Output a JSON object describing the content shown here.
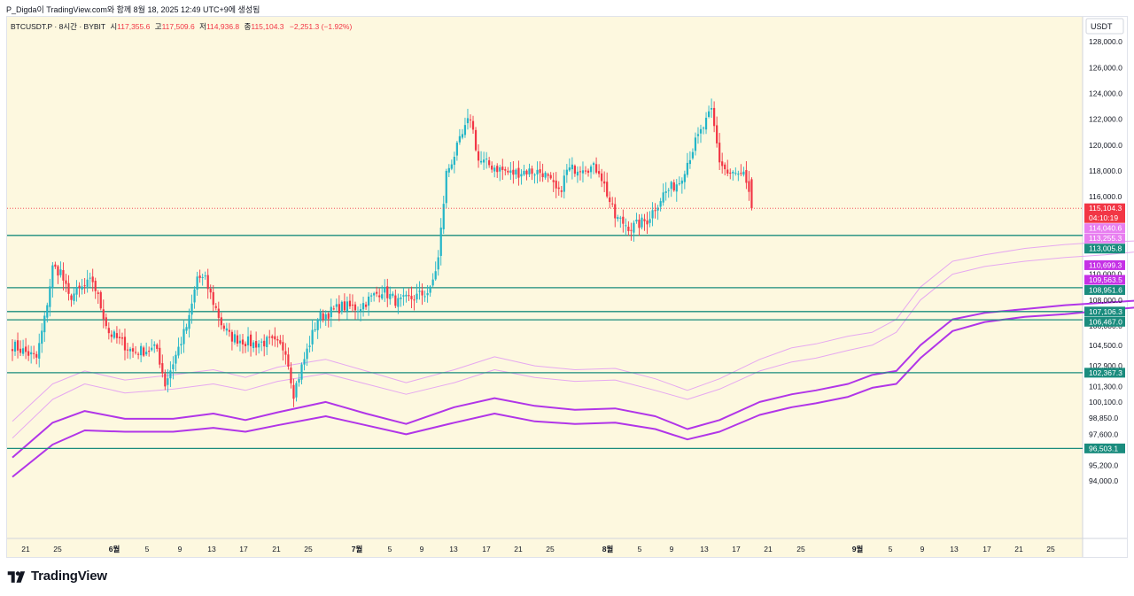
{
  "caption": "P_Digda이 TradingView.com와 함께 8월 18, 2025 12:49 UTC+9에 생성됨",
  "legend": {
    "symbol": "BTCUSDT.P · 8시간 · BYBIT",
    "open_label": "시",
    "open": "117,355.6",
    "high_label": "고",
    "high": "117,509.6",
    "low_label": "저",
    "low": "114,936.8",
    "close_label": "종",
    "close": "115,104.3",
    "change": "−2,251.3 (−1.92%)"
  },
  "brand": {
    "name": "TradingView"
  },
  "colors": {
    "background": "#fdf8df",
    "up": "#22b5c8",
    "down": "#f23645",
    "hline": "#1a8c7e",
    "band_inner": "#e6a8f0",
    "band_outer": "#b135e8",
    "price_line": "#f23645"
  },
  "chart_data": {
    "type": "candlestick",
    "symbol": "BTCUSDT.P",
    "exchange": "BYBIT",
    "interval": "8시간",
    "currency": "USDT",
    "y_axis": {
      "ylim": [
        93100,
        129400
      ],
      "ticks": [
        "128,000.0",
        "126,000.0",
        "124,000.0",
        "122,000.0",
        "120,000.0",
        "118,000.0",
        "116,000.0",
        "108,000.0",
        "104,500.0",
        "102,900.0",
        "101,300.0",
        "100,100.0",
        "98,850.0",
        "97,600.0",
        "95,200.0",
        "94,000.0"
      ],
      "partial_ticks": [
        "110,000.0",
        "106,000.0"
      ]
    },
    "x_axis": {
      "labels": [
        "21",
        "25",
        "6월",
        "5",
        "9",
        "13",
        "17",
        "21",
        "25",
        "7월",
        "5",
        "9",
        "13",
        "17",
        "21",
        "25",
        "8월",
        "5",
        "9",
        "13",
        "17",
        "21",
        "25",
        "9월",
        "5",
        "9",
        "13",
        "17",
        "21",
        "25"
      ]
    },
    "horizontal_levels": [
      113005.8,
      108951.6,
      107106.3,
      106467.0,
      102367.3,
      96503.1
    ],
    "price_badges": [
      {
        "text": "115,104.3",
        "sub": "04:10:19",
        "value": 115104.3,
        "color": "#f23645"
      },
      {
        "text": "114,040.6",
        "value": 114040.6,
        "color": "#e87ef0"
      },
      {
        "text": "113,255.3",
        "value": 113255.3,
        "color": "#e87ef0"
      },
      {
        "text": "113,005.8",
        "value": 113005.8,
        "color": "#1a8c7e"
      },
      {
        "text": "110,699.3",
        "value": 110699.3,
        "color": "#c531e6"
      },
      {
        "text": "109,563.5",
        "value": 109563.5,
        "color": "#c531e6"
      },
      {
        "text": "108,951.6",
        "value": 108951.6,
        "color": "#1a8c7e"
      },
      {
        "text": "107,106.3",
        "value": 107106.3,
        "color": "#1a8c7e"
      },
      {
        "text": "106,467.0",
        "value": 106467.0,
        "color": "#1a8c7e"
      },
      {
        "text": "102,367.3",
        "value": 102367.3,
        "color": "#1a8c7e"
      },
      {
        "text": "96,503.1",
        "value": 96503.1,
        "color": "#1a8c7e"
      }
    ],
    "close_path": [
      [
        "5/18",
        104500
      ],
      [
        "5/21",
        103500
      ],
      [
        "5/22",
        106500
      ],
      [
        "5/23",
        110500
      ],
      [
        "5/24",
        110200
      ],
      [
        "5/25",
        108200
      ],
      [
        "5/28",
        109500
      ],
      [
        "5/30",
        105500
      ],
      [
        "6/2",
        104000
      ],
      [
        "6/5",
        104200
      ],
      [
        "6/6",
        101500
      ],
      [
        "6/9",
        106500
      ],
      [
        "6/10",
        109800
      ],
      [
        "6/11",
        109500
      ],
      [
        "6/13",
        106200
      ],
      [
        "6/14",
        105200
      ],
      [
        "6/17",
        104600
      ],
      [
        "6/19",
        104800
      ],
      [
        "6/21",
        104200
      ],
      [
        "6/22",
        100800
      ],
      [
        "6/23",
        102800
      ],
      [
        "6/25",
        106600
      ],
      [
        "6/28",
        107500
      ],
      [
        "6/30",
        107400
      ],
      [
        "7/3",
        108800
      ],
      [
        "7/5",
        107800
      ],
      [
        "7/7",
        108200
      ],
      [
        "7/9",
        108700
      ],
      [
        "7/10",
        111200
      ],
      [
        "7/11",
        117800
      ],
      [
        "7/14",
        122200
      ],
      [
        "7/15",
        118800
      ],
      [
        "7/17",
        118300
      ],
      [
        "7/19",
        117800
      ],
      [
        "7/21",
        118000
      ],
      [
        "7/23",
        117900
      ],
      [
        "7/25",
        116200
      ],
      [
        "7/26",
        118000
      ],
      [
        "7/28",
        118400
      ],
      [
        "7/30",
        118100
      ],
      [
        "8/1",
        114400
      ],
      [
        "8/3",
        113600
      ],
      [
        "8/5",
        114200
      ],
      [
        "8/7",
        116200
      ],
      [
        "8/9",
        117200
      ],
      [
        "8/11",
        120200
      ],
      [
        "8/13",
        122600
      ],
      [
        "8/14",
        118800
      ],
      [
        "8/15",
        117800
      ],
      [
        "8/17",
        117600
      ],
      [
        "8/18",
        115104.3
      ]
    ],
    "series": [
      {
        "name": "",
        "role": "outer band upper",
        "values": [
          [
            0,
            95800
          ],
          [
            5,
            98500
          ],
          [
            9,
            99400
          ],
          [
            14,
            98800
          ],
          [
            20,
            98800
          ],
          [
            25,
            99200
          ],
          [
            29,
            98700
          ],
          [
            33,
            99300
          ],
          [
            39,
            100100
          ],
          [
            44,
            99200
          ],
          [
            49,
            98400
          ],
          [
            55,
            99700
          ],
          [
            60,
            100400
          ],
          [
            65,
            99800
          ],
          [
            70,
            99500
          ],
          [
            75,
            99600
          ],
          [
            80,
            99000
          ],
          [
            84,
            98000
          ],
          [
            88,
            98700
          ],
          [
            93,
            100100
          ],
          [
            97,
            100700
          ],
          [
            100,
            101000
          ],
          [
            104,
            101500
          ],
          [
            107,
            102200
          ],
          [
            110,
            102500
          ],
          [
            113,
            104500
          ],
          [
            117,
            106500
          ],
          [
            121,
            107000
          ],
          [
            126,
            107300
          ],
          [
            131,
            107600
          ],
          [
            136,
            107800
          ],
          [
            141,
            108000
          ],
          [
            146,
            108200
          ],
          [
            151,
            108600
          ],
          [
            155,
            108500
          ],
          [
            160,
            108700
          ],
          [
            165,
            108000
          ],
          [
            168,
            107400
          ],
          [
            171,
            107300
          ],
          [
            176,
            107800
          ],
          [
            180,
            108500
          ],
          [
            184,
            109700
          ],
          [
            188,
            110800
          ],
          [
            190,
            111000
          ],
          [
            193,
            110700
          ],
          [
            197,
            110600
          ]
        ]
      },
      {
        "name": "",
        "role": "outer band lower",
        "values": [
          [
            0,
            94300
          ],
          [
            5,
            96800
          ],
          [
            9,
            97900
          ],
          [
            14,
            97800
          ],
          [
            20,
            97800
          ],
          [
            25,
            98100
          ],
          [
            29,
            97800
          ],
          [
            33,
            98300
          ],
          [
            39,
            99000
          ],
          [
            44,
            98300
          ],
          [
            49,
            97600
          ],
          [
            55,
            98500
          ],
          [
            60,
            99200
          ],
          [
            65,
            98600
          ],
          [
            70,
            98400
          ],
          [
            75,
            98500
          ],
          [
            80,
            98000
          ],
          [
            84,
            97200
          ],
          [
            88,
            97800
          ],
          [
            93,
            99100
          ],
          [
            97,
            99700
          ],
          [
            100,
            100000
          ],
          [
            104,
            100500
          ],
          [
            107,
            101200
          ],
          [
            110,
            101500
          ],
          [
            113,
            103500
          ],
          [
            117,
            105600
          ],
          [
            121,
            106300
          ],
          [
            126,
            106700
          ],
          [
            131,
            106900
          ],
          [
            136,
            107200
          ],
          [
            141,
            107500
          ],
          [
            146,
            107700
          ],
          [
            151,
            107900
          ],
          [
            155,
            107900
          ],
          [
            160,
            108100
          ],
          [
            165,
            107200
          ],
          [
            168,
            106900
          ],
          [
            171,
            106800
          ],
          [
            176,
            107200
          ],
          [
            180,
            108000
          ],
          [
            184,
            109000
          ],
          [
            188,
            109900
          ],
          [
            190,
            110100
          ],
          [
            193,
            109700
          ],
          [
            197,
            109500
          ]
        ]
      },
      {
        "name": "",
        "role": "inner band upper",
        "values": [
          [
            0,
            98600
          ],
          [
            5,
            101500
          ],
          [
            9,
            102500
          ],
          [
            14,
            101800
          ],
          [
            20,
            102200
          ],
          [
            25,
            102600
          ],
          [
            29,
            102000
          ],
          [
            33,
            102800
          ],
          [
            39,
            103400
          ],
          [
            44,
            102500
          ],
          [
            49,
            101600
          ],
          [
            55,
            102600
          ],
          [
            60,
            103600
          ],
          [
            65,
            102900
          ],
          [
            70,
            102600
          ],
          [
            75,
            102700
          ],
          [
            80,
            101900
          ],
          [
            84,
            101000
          ],
          [
            88,
            101900
          ],
          [
            93,
            103400
          ],
          [
            97,
            104300
          ],
          [
            100,
            104600
          ],
          [
            104,
            105200
          ],
          [
            107,
            105500
          ],
          [
            110,
            106500
          ],
          [
            113,
            109000
          ],
          [
            117,
            111000
          ],
          [
            121,
            111500
          ],
          [
            126,
            112000
          ],
          [
            131,
            112300
          ],
          [
            136,
            112500
          ],
          [
            141,
            112600
          ],
          [
            146,
            112900
          ],
          [
            151,
            113300
          ],
          [
            155,
            113000
          ],
          [
            160,
            113500
          ],
          [
            165,
            112500
          ],
          [
            168,
            112200
          ],
          [
            171,
            112200
          ],
          [
            176,
            112600
          ],
          [
            180,
            113400
          ],
          [
            184,
            114200
          ],
          [
            188,
            115000
          ],
          [
            190,
            115200
          ],
          [
            193,
            114700
          ],
          [
            197,
            114500
          ]
        ]
      },
      {
        "name": "",
        "role": "inner band lower",
        "values": [
          [
            0,
            97300
          ],
          [
            5,
            100300
          ],
          [
            9,
            101500
          ],
          [
            14,
            100800
          ],
          [
            20,
            101100
          ],
          [
            25,
            101500
          ],
          [
            29,
            101000
          ],
          [
            33,
            101700
          ],
          [
            39,
            102300
          ],
          [
            44,
            101500
          ],
          [
            49,
            100700
          ],
          [
            55,
            101600
          ],
          [
            60,
            102600
          ],
          [
            65,
            102000
          ],
          [
            70,
            101700
          ],
          [
            75,
            101800
          ],
          [
            80,
            101000
          ],
          [
            84,
            100300
          ],
          [
            88,
            101100
          ],
          [
            93,
            102500
          ],
          [
            97,
            103200
          ],
          [
            100,
            103500
          ],
          [
            104,
            104100
          ],
          [
            107,
            104500
          ],
          [
            110,
            105500
          ],
          [
            113,
            108000
          ],
          [
            117,
            110000
          ],
          [
            121,
            110600
          ],
          [
            126,
            111000
          ],
          [
            131,
            111300
          ],
          [
            136,
            111500
          ],
          [
            141,
            111800
          ],
          [
            146,
            112000
          ],
          [
            151,
            112300
          ],
          [
            155,
            112000
          ],
          [
            160,
            112600
          ],
          [
            165,
            111700
          ],
          [
            168,
            111400
          ],
          [
            171,
            111500
          ],
          [
            176,
            111900
          ],
          [
            180,
            112700
          ],
          [
            184,
            113400
          ],
          [
            188,
            114200
          ],
          [
            190,
            114400
          ],
          [
            193,
            114000
          ],
          [
            197,
            113800
          ]
        ]
      }
    ]
  }
}
